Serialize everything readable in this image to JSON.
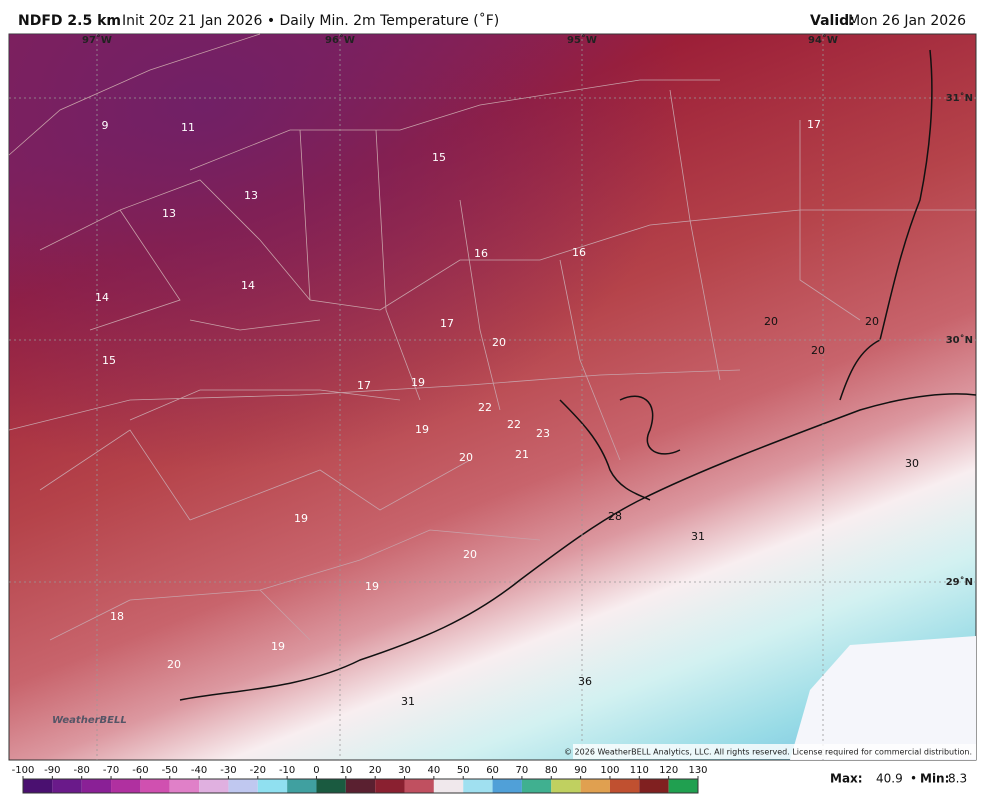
{
  "header": {
    "title": "NDFD 2.5 km",
    "subtitle": "Init 20z 21 Jan 2026 • Daily Min. 2m Temperature (˚F)",
    "valid_label": "Valid:",
    "valid_date": "Mon 26 Jan 2026"
  },
  "graticule": {
    "longitudes": [
      "97˚W",
      "96˚W",
      "95˚W",
      "94˚W"
    ],
    "latitudes": [
      "31˚N",
      "30˚N",
      "29˚N"
    ]
  },
  "map_labels": [
    9,
    11,
    13,
    13,
    15,
    14,
    14,
    16,
    16,
    17,
    15,
    17,
    20,
    17,
    19,
    22,
    22,
    23,
    21,
    19,
    20,
    19,
    20,
    19,
    18,
    19,
    20,
    28,
    31,
    30,
    20,
    20,
    20,
    31,
    36
  ],
  "copyright": "© 2026 WeatherBELL Analytics, LLC. All rights reserved. License required for commercial distribution.",
  "logo": "WeatherBELL",
  "colorbar": {
    "ticks": [
      -100,
      -90,
      -80,
      -70,
      -60,
      -50,
      -40,
      -30,
      -20,
      -10,
      0,
      10,
      20,
      30,
      40,
      50,
      60,
      70,
      80,
      90,
      100,
      110,
      120,
      130
    ]
  },
  "stats": {
    "max_label": "Max:",
    "max": 40.9,
    "separator": "•",
    "min_label": "Min:",
    "min": 8.3
  }
}
